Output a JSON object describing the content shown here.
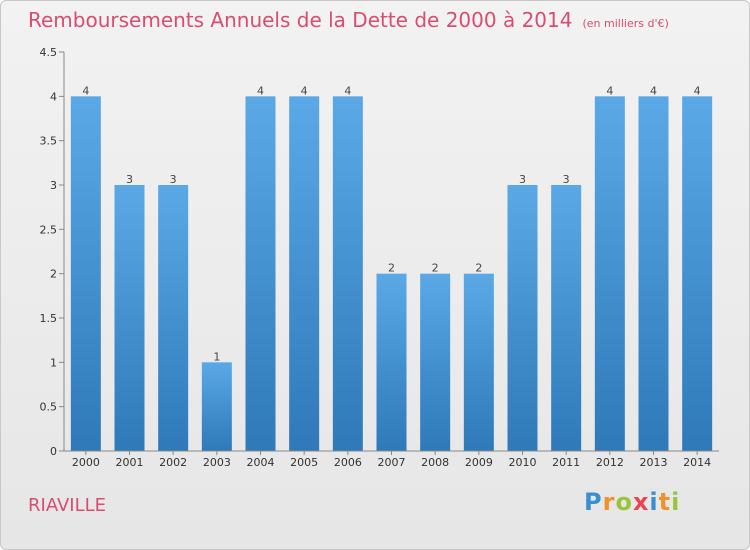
{
  "title": "Remboursements Annuels de la Dette de 2000 à 2014",
  "subtitle": "(en milliers d'€)",
  "location": "RIAVILLE",
  "brand": {
    "text": "Proxiti",
    "letters": [
      {
        "ch": "P",
        "color": "#3a8fd1"
      },
      {
        "ch": "r",
        "color": "#f0912e"
      },
      {
        "ch": "o",
        "color": "#9ac43c"
      },
      {
        "ch": "x",
        "color": "#e8454f"
      },
      {
        "ch": "i",
        "color": "#3a8fd1"
      },
      {
        "ch": "t",
        "color": "#f0912e"
      },
      {
        "ch": "i",
        "color": "#9ac43c"
      }
    ]
  },
  "colors": {
    "accent": "#d84d70",
    "bar_top": "#5aa9e6",
    "bar_bottom": "#2f79b9"
  },
  "chart_data": {
    "type": "bar",
    "categories": [
      "2000",
      "2001",
      "2002",
      "2003",
      "2004",
      "2005",
      "2006",
      "2007",
      "2008",
      "2009",
      "2010",
      "2011",
      "2012",
      "2013",
      "2014"
    ],
    "values": [
      4,
      3,
      3,
      1,
      4,
      4,
      4,
      2,
      2,
      2,
      3,
      3,
      4,
      4,
      4
    ],
    "title": "Remboursements Annuels de la Dette de 2000 à 2014",
    "subtitle": "(en milliers d'€)",
    "ylim": [
      0,
      4.5
    ],
    "yticks": [
      "0",
      "0.5",
      "1",
      "1.5",
      "2",
      "2.5",
      "3",
      "3.5",
      "4",
      "4.5"
    ],
    "grid": false,
    "legend": "none"
  }
}
